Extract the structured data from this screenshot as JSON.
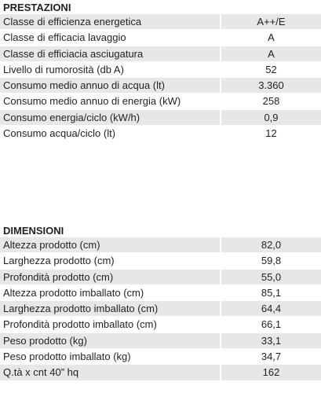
{
  "sections": [
    {
      "title": "PRESTAZIONI",
      "rows": [
        [
          "Classe di efficienza energetica",
          "A++/E"
        ],
        [
          "Classe di efficacia lavaggio",
          "A"
        ],
        [
          "Classe di efficiacia asciugatura",
          "A"
        ],
        [
          "Livello di rumorosità (db A)",
          "52"
        ],
        [
          "Consumo medio annuo di acqua (lt)",
          "3.360"
        ],
        [
          "Consumo medio annuo di energia (kW)",
          "258"
        ],
        [
          "Consumo energia/ciclo (kW/h)",
          "0,9"
        ],
        [
          "Consumo acqua/ciclo (lt)",
          "12"
        ]
      ]
    },
    {
      "title": "DIMENSIONI",
      "rows": [
        [
          "Altezza prodotto (cm)",
          "82,0"
        ],
        [
          "Larghezza prodotto (cm)",
          "59,8"
        ],
        [
          "Profondità prodotto (cm)",
          "55,0"
        ],
        [
          "Altezza prodotto imballato (cm)",
          "85,1"
        ],
        [
          "Larghezza prodotto imballato (cm)",
          "64,4"
        ],
        [
          "Profondità prodotto imballato (cm)",
          "66,1"
        ],
        [
          "Peso prodotto (kg)",
          "33,1"
        ],
        [
          "Peso prodotto imballato (kg)",
          "34,7"
        ],
        [
          "Q.tà x cnt 40” hq",
          "162"
        ]
      ]
    }
  ]
}
